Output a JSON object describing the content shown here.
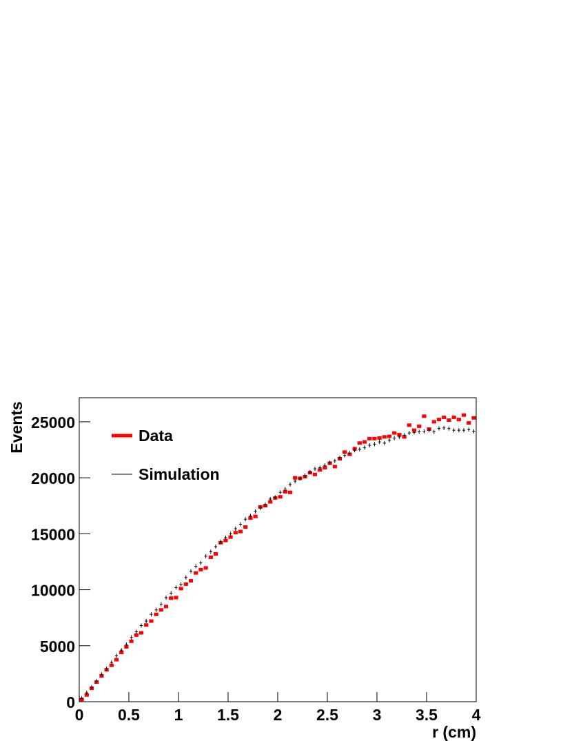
{
  "chart_data": {
    "type": "histogram",
    "xlabel": "r (cm)",
    "ylabel": "Events",
    "bins": [
      0,
      0.05,
      0.1,
      0.15,
      0.2,
      0.25,
      0.3,
      0.35,
      0.4,
      0.45,
      0.5,
      0.55,
      0.6,
      0.65,
      0.7,
      0.75,
      0.8,
      0.85,
      0.9,
      0.95,
      1,
      1.05,
      1.1,
      1.15,
      1.2,
      1.25,
      1.3,
      1.35,
      1.4,
      1.45,
      1.5,
      1.55,
      1.6,
      1.65,
      1.7,
      1.75,
      1.8,
      1.85,
      1.9,
      1.95,
      2,
      2.05,
      2.1,
      2.15,
      2.2,
      2.25,
      2.3,
      2.35,
      2.4,
      2.45,
      2.5,
      2.55,
      2.6,
      2.65,
      2.7,
      2.75,
      2.8,
      2.85,
      2.9,
      2.95,
      3,
      3.05,
      3.1,
      3.15,
      3.2,
      3.25,
      3.3,
      3.35,
      3.4,
      3.45,
      3.5,
      3.55,
      3.6,
      3.65,
      3.7,
      3.75,
      3.8,
      3.85,
      3.9,
      3.95,
      4
    ],
    "series": [
      {
        "name": "Data",
        "color": "#ff0000",
        "style": "marker",
        "values": [
          200,
          600,
          1200,
          1750,
          2300,
          2850,
          3250,
          3750,
          4400,
          4900,
          5400,
          5950,
          6150,
          6850,
          7200,
          7800,
          8200,
          8500,
          9250,
          9300,
          10100,
          10500,
          10800,
          11500,
          11800,
          11950,
          12900,
          13200,
          14200,
          14400,
          14700,
          15100,
          15200,
          15600,
          16400,
          16550,
          17400,
          17500,
          17850,
          18200,
          18300,
          18750,
          18700,
          20000,
          19950,
          20100,
          20450,
          20300,
          20700,
          20900,
          21300,
          21000,
          21700,
          22300,
          22100,
          22600,
          23100,
          23200,
          23500,
          23500,
          23550,
          23650,
          23700,
          24000,
          23850,
          23650,
          24700,
          24250,
          24600,
          25500,
          24350,
          25000,
          25200,
          25400,
          25150,
          25400,
          25200,
          25600,
          24900,
          25350
        ]
      },
      {
        "name": "Simulation",
        "color": "#000000",
        "style": "cross",
        "values": [
          300,
          800,
          1300,
          1850,
          2450,
          2950,
          3500,
          4100,
          4600,
          5100,
          5750,
          6250,
          6800,
          7200,
          7800,
          8200,
          8700,
          9300,
          9700,
          10200,
          10500,
          11100,
          11650,
          12100,
          12400,
          13000,
          13400,
          13850,
          14300,
          14650,
          15000,
          15450,
          15850,
          16300,
          16600,
          17000,
          17300,
          17600,
          18100,
          18250,
          18700,
          19000,
          19400,
          19700,
          19950,
          20200,
          20500,
          20800,
          20900,
          21100,
          21350,
          21500,
          21800,
          22000,
          22200,
          22450,
          22550,
          22700,
          22900,
          23000,
          23200,
          23100,
          23350,
          23550,
          23650,
          23800,
          24000,
          24050,
          24100,
          24150,
          24250,
          24100,
          24400,
          24450,
          24400,
          24250,
          24250,
          24250,
          24300,
          24150
        ]
      }
    ],
    "xlim": [
      0,
      4
    ],
    "xticks": [
      0,
      0.5,
      1,
      1.5,
      2,
      2.5,
      3,
      3.5,
      4
    ],
    "ylim": [
      0,
      27150
    ],
    "yticks": [
      0,
      5000,
      10000,
      15000,
      20000,
      25000
    ]
  }
}
